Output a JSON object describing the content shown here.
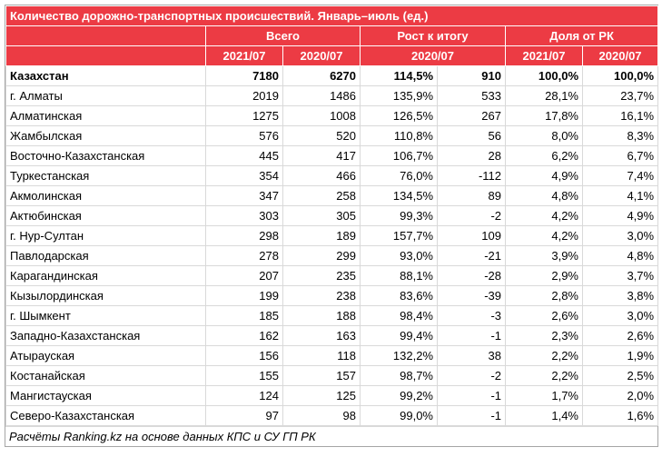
{
  "title": "Количество дорожно-транспортных происшествий. Январь–июль (ед.)",
  "header": {
    "groups": [
      "Всего",
      "Рост к итогу",
      "Доля от РК"
    ],
    "periods": [
      "2021/07",
      "2020/07",
      "2020/07",
      "2021/07",
      "2020/07"
    ]
  },
  "table": {
    "rows": [
      [
        "Казахстан",
        "7180",
        "6270",
        "114,5%",
        "910",
        "100,0%",
        "100,0%"
      ],
      [
        "г. Алматы",
        "2019",
        "1486",
        "135,9%",
        "533",
        "28,1%",
        "23,7%"
      ],
      [
        "Алматинская",
        "1275",
        "1008",
        "126,5%",
        "267",
        "17,8%",
        "16,1%"
      ],
      [
        "Жамбылская",
        "576",
        "520",
        "110,8%",
        "56",
        "8,0%",
        "8,3%"
      ],
      [
        "Восточно-Казахстанская",
        "445",
        "417",
        "106,7%",
        "28",
        "6,2%",
        "6,7%"
      ],
      [
        "Туркестанская",
        "354",
        "466",
        "76,0%",
        "-112",
        "4,9%",
        "7,4%"
      ],
      [
        "Акмолинская",
        "347",
        "258",
        "134,5%",
        "89",
        "4,8%",
        "4,1%"
      ],
      [
        "Актюбинская",
        "303",
        "305",
        "99,3%",
        "-2",
        "4,2%",
        "4,9%"
      ],
      [
        "г. Нур-Султан",
        "298",
        "189",
        "157,7%",
        "109",
        "4,2%",
        "3,0%"
      ],
      [
        "Павлодарская",
        "278",
        "299",
        "93,0%",
        "-21",
        "3,9%",
        "4,8%"
      ],
      [
        "Карагандинская",
        "207",
        "235",
        "88,1%",
        "-28",
        "2,9%",
        "3,7%"
      ],
      [
        "Кызылординская",
        "199",
        "238",
        "83,6%",
        "-39",
        "2,8%",
        "3,8%"
      ],
      [
        "г. Шымкент",
        "185",
        "188",
        "98,4%",
        "-3",
        "2,6%",
        "3,0%"
      ],
      [
        "Западно-Казахстанская",
        "162",
        "163",
        "99,4%",
        "-1",
        "2,3%",
        "2,6%"
      ],
      [
        "Атырауская",
        "156",
        "118",
        "132,2%",
        "38",
        "2,2%",
        "1,9%"
      ],
      [
        "Костанайская",
        "155",
        "157",
        "98,7%",
        "-2",
        "2,2%",
        "2,5%"
      ],
      [
        "Мангистауская",
        "124",
        "125",
        "99,2%",
        "-1",
        "1,7%",
        "2,0%"
      ],
      [
        "Северо-Казахстанская",
        "97",
        "98",
        "99,0%",
        "-1",
        "1,4%",
        "1,6%"
      ]
    ]
  },
  "footer": "Расчёты Ranking.kz на основе данных КПС и СУ ГП РК"
}
